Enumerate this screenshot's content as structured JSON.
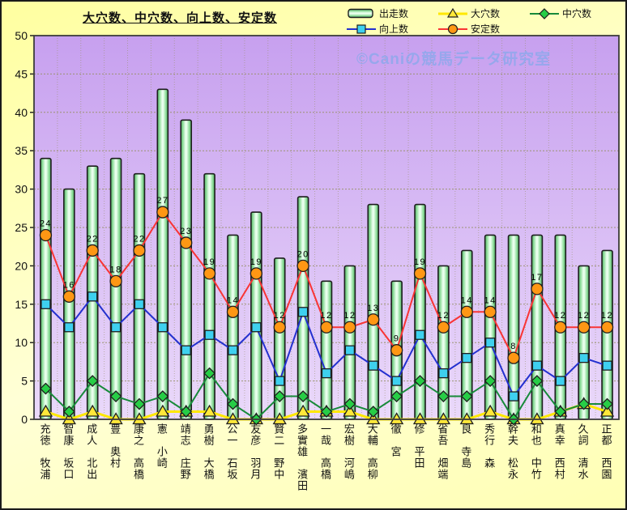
{
  "frame": {
    "title": "大穴数、中穴数、向上数、安定数",
    "watermark": "©Caniの競馬データ研究室"
  },
  "legend": {
    "items": [
      {
        "label": "出走数",
        "marker": "bar"
      },
      {
        "label": "大穴数",
        "marker": "triangle"
      },
      {
        "label": "中穴数",
        "marker": "diamond"
      },
      {
        "label": "向上数",
        "marker": "square"
      },
      {
        "label": "安定数",
        "marker": "circle"
      }
    ]
  },
  "chart_data": {
    "type": "bar",
    "title": "大穴数、中穴数、向上数、安定数",
    "xlabel": "",
    "ylabel": "",
    "ylim": [
      0,
      50
    ],
    "y_ticks": [
      0,
      5,
      10,
      15,
      20,
      25,
      30,
      35,
      40,
      45,
      50
    ],
    "grid": true,
    "legend_position": "top-right",
    "categories": [
      "牧浦 充徳",
      "坂口 智康",
      "北出 成人",
      "奥村 豊",
      "高橋 康之",
      "小崎 憲",
      "庄野 靖志",
      "大橋 勇樹",
      "石坂 公一",
      "羽月 友彦",
      "野中 賢二",
      "濱田 多實雄",
      "高橋 一哉",
      "河嶋 宏樹",
      "高柳 大輔",
      "宮 徹",
      "平田 修",
      "畑端 省吾",
      "寺島 良",
      "森 秀行",
      "松永 幹夫",
      "中竹 和也",
      "西村 真幸",
      "清水 久詞",
      "西園 正都"
    ],
    "series": [
      {
        "name": "出走数",
        "type": "bar",
        "marker": "bar",
        "values": [
          34,
          30,
          33,
          34,
          32,
          43,
          39,
          32,
          24,
          27,
          21,
          29,
          18,
          20,
          28,
          18,
          28,
          20,
          22,
          24,
          24,
          24,
          24,
          20,
          22
        ]
      },
      {
        "name": "大穴数",
        "type": "line",
        "marker": "triangle",
        "values": [
          1,
          0,
          1,
          0,
          0,
          1,
          1,
          1,
          0,
          0,
          0,
          1,
          1,
          1,
          0,
          0,
          0,
          0,
          0,
          1,
          0,
          0,
          1,
          2,
          1
        ]
      },
      {
        "name": "中穴数",
        "type": "line",
        "marker": "diamond",
        "values": [
          4,
          1,
          5,
          3,
          2,
          3,
          1,
          6,
          2,
          0,
          3,
          3,
          1,
          2,
          1,
          3,
          5,
          3,
          3,
          5,
          0,
          5,
          1,
          2,
          2
        ]
      },
      {
        "name": "向上数",
        "type": "line",
        "marker": "square",
        "values": [
          15,
          12,
          16,
          12,
          15,
          12,
          9,
          11,
          9,
          12,
          5,
          14,
          6,
          9,
          7,
          5,
          11,
          6,
          8,
          10,
          3,
          7,
          5,
          8,
          7
        ]
      },
      {
        "name": "安定数",
        "type": "line",
        "marker": "circle",
        "labels_shown": true,
        "values": [
          24,
          16,
          22,
          18,
          22,
          27,
          23,
          19,
          14,
          19,
          12,
          20,
          12,
          12,
          13,
          9,
          19,
          12,
          14,
          14,
          8,
          17,
          12,
          12,
          12
        ]
      }
    ],
    "colors": {
      "outer_bg": "#ffffc4",
      "plot_bg_top": "#c7a0ef",
      "plot_bg_bottom": "#ead9fa",
      "grid": "#969066",
      "plot_border": "#3c3c3c",
      "bar_edge": "#4fae63",
      "bar_mid": "#8fdd9b",
      "bar_center": "#eaffee",
      "bar_border": "#1d1d1d",
      "triangle_line": "#ffe800",
      "triangle_fill": "#ffe83a",
      "diamond_line": "#178a3a",
      "diamond_fill": "#27cd46",
      "square_line": "#2330cf",
      "square_fill": "#3ed0ef",
      "circle_line": "#f93434",
      "circle_fill": "#ff9714",
      "marker_border": "#1e1e1e",
      "value_label": "#000000",
      "axis_label": "#111111",
      "watermark": "#8fa8ec"
    }
  }
}
